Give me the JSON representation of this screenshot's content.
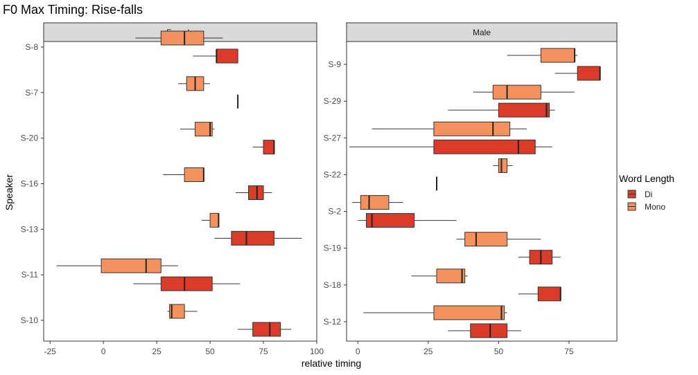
{
  "chart_data": {
    "type": "boxplot",
    "title": "F0 Max Timing: Rise-falls",
    "xlabel": "relative timing",
    "ylabel": "Speaker",
    "legend": {
      "title": "Word Length",
      "position": "right",
      "items": [
        {
          "key": "Di",
          "label": "Di",
          "color": "#dc3b2a"
        },
        {
          "key": "Mono",
          "label": "Mono",
          "color": "#f4925e"
        }
      ]
    },
    "panels": [
      {
        "name": "Female",
        "xlim": [
          -28,
          100
        ],
        "xticks": [
          -25,
          0,
          25,
          50,
          75,
          100
        ],
        "speakers": [
          "S-8",
          "S-7",
          "S-20",
          "S-16",
          "S-13",
          "S-11",
          "S-10"
        ],
        "boxes": [
          {
            "speaker": "S-8",
            "group": "Mono",
            "whisker_low": 15,
            "q1": 27,
            "median": 38,
            "q3": 47,
            "whisker_high": 56
          },
          {
            "speaker": "S-8",
            "group": "Di",
            "whisker_low": 42,
            "q1": 53,
            "median": 53,
            "q3": 63,
            "whisker_high": 63
          },
          {
            "speaker": "S-7",
            "group": "Mono",
            "whisker_low": 35,
            "q1": 39,
            "median": 43,
            "q3": 47,
            "whisker_high": 50
          },
          {
            "speaker": "S-7",
            "group": "Di",
            "whisker_low": 63,
            "q1": 63,
            "median": 63,
            "q3": 63,
            "whisker_high": 63
          },
          {
            "speaker": "S-20",
            "group": "Mono",
            "whisker_low": 36,
            "q1": 43,
            "median": 50,
            "q3": 51,
            "whisker_high": 52
          },
          {
            "speaker": "S-20",
            "group": "Di",
            "whisker_low": 70,
            "q1": 75,
            "median": 80,
            "q3": 80,
            "whisker_high": 80
          },
          {
            "speaker": "S-16",
            "group": "Mono",
            "whisker_low": 28,
            "q1": 38,
            "median": 47,
            "q3": 47,
            "whisker_high": 47
          },
          {
            "speaker": "S-16",
            "group": "Di",
            "whisker_low": 62,
            "q1": 68,
            "median": 72,
            "q3": 75,
            "whisker_high": 79
          },
          {
            "speaker": "S-13",
            "group": "Mono",
            "whisker_low": 46,
            "q1": 50,
            "median": 54,
            "q3": 54,
            "whisker_high": 54
          },
          {
            "speaker": "S-13",
            "group": "Di",
            "whisker_low": 52,
            "q1": 60,
            "median": 67,
            "q3": 80,
            "whisker_high": 93
          },
          {
            "speaker": "S-11",
            "group": "Mono",
            "whisker_low": -22,
            "q1": -1,
            "median": 20,
            "q3": 27,
            "whisker_high": 35
          },
          {
            "speaker": "S-11",
            "group": "Di",
            "whisker_low": 14,
            "q1": 27,
            "median": 38,
            "q3": 51,
            "whisker_high": 64
          },
          {
            "speaker": "S-10",
            "group": "Mono",
            "whisker_low": 30,
            "q1": 31,
            "median": 32,
            "q3": 38,
            "whisker_high": 44
          },
          {
            "speaker": "S-10",
            "group": "Di",
            "whisker_low": 63,
            "q1": 70,
            "median": 78,
            "q3": 83,
            "whisker_high": 88
          }
        ]
      },
      {
        "name": "Male",
        "xlim": [
          -4,
          92
        ],
        "xticks": [
          0,
          25,
          50,
          75
        ],
        "speakers": [
          "S-9",
          "S-29",
          "S-27",
          "S-22",
          "S-2",
          "S-19",
          "S-18",
          "S-12"
        ],
        "boxes": [
          {
            "speaker": "S-9",
            "group": "Mono",
            "whisker_low": 53,
            "q1": 65,
            "median": 77,
            "q3": 77,
            "whisker_high": 78
          },
          {
            "speaker": "S-9",
            "group": "Di",
            "whisker_low": 70,
            "q1": 78,
            "median": 86,
            "q3": 86,
            "whisker_high": 86
          },
          {
            "speaker": "S-29",
            "group": "Mono",
            "whisker_low": 41,
            "q1": 48,
            "median": 53,
            "q3": 65,
            "whisker_high": 77
          },
          {
            "speaker": "S-29",
            "group": "Di",
            "whisker_low": 32,
            "q1": 50,
            "median": 67,
            "q3": 68,
            "whisker_high": 70
          },
          {
            "speaker": "S-27",
            "group": "Mono",
            "whisker_low": 5,
            "q1": 27,
            "median": 48,
            "q3": 54,
            "whisker_high": 60
          },
          {
            "speaker": "S-27",
            "group": "Di",
            "whisker_low": -3,
            "q1": 27,
            "median": 57,
            "q3": 63,
            "whisker_high": 69
          },
          {
            "speaker": "S-22",
            "group": "Mono",
            "whisker_low": 48,
            "q1": 50,
            "median": 51,
            "q3": 53,
            "whisker_high": 55
          },
          {
            "speaker": "S-22",
            "group": "Di",
            "whisker_low": 28,
            "q1": 28,
            "median": 28,
            "q3": 28,
            "whisker_high": 28
          },
          {
            "speaker": "S-2",
            "group": "Mono",
            "whisker_low": -2,
            "q1": 1,
            "median": 4,
            "q3": 11,
            "whisker_high": 16
          },
          {
            "speaker": "S-2",
            "group": "Di",
            "whisker_low": 0,
            "q1": 3,
            "median": 5,
            "q3": 20,
            "whisker_high": 35
          },
          {
            "speaker": "S-19",
            "group": "Mono",
            "whisker_low": 35,
            "q1": 38,
            "median": 42,
            "q3": 53,
            "whisker_high": 65
          },
          {
            "speaker": "S-19",
            "group": "Di",
            "whisker_low": 57,
            "q1": 61,
            "median": 65,
            "q3": 69,
            "whisker_high": 72
          },
          {
            "speaker": "S-18",
            "group": "Mono",
            "whisker_low": 19,
            "q1": 28,
            "median": 37,
            "q3": 38,
            "whisker_high": 39
          },
          {
            "speaker": "S-18",
            "group": "Di",
            "whisker_low": 57,
            "q1": 64,
            "median": 72,
            "q3": 72,
            "whisker_high": 72
          },
          {
            "speaker": "S-12",
            "group": "Mono",
            "whisker_low": 2,
            "q1": 27,
            "median": 51,
            "q3": 52,
            "whisker_high": 53
          },
          {
            "speaker": "S-12",
            "group": "Di",
            "whisker_low": 32,
            "q1": 40,
            "median": 47,
            "q3": 53,
            "whisker_high": 58
          }
        ]
      }
    ]
  }
}
